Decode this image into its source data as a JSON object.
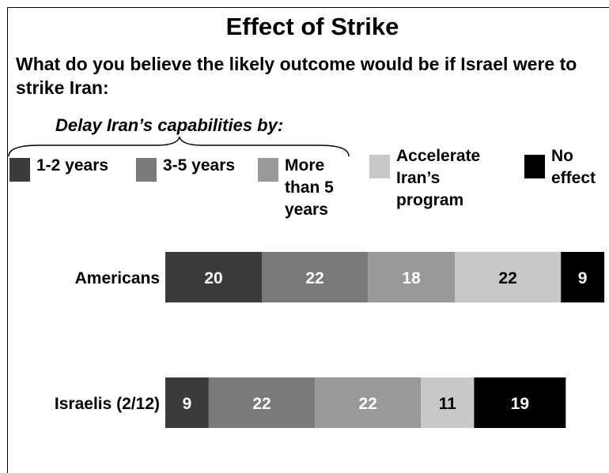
{
  "title": "Effect of Strike",
  "question": "What do you believe the likely outcome would be if Israel were to strike Iran:",
  "group_label": "Delay Iran’s capabilities by:",
  "chart_data": {
    "type": "bar",
    "orientation": "horizontal",
    "stacked": true,
    "title": "Effect of Strike",
    "xlabel": "",
    "ylabel": "",
    "categories": [
      "Americans",
      "Israelis (2/12)"
    ],
    "series": [
      {
        "name": "1-2 years",
        "color": "#3b3b3b",
        "values": [
          20,
          9
        ]
      },
      {
        "name": "3-5 years",
        "color": "#7a7a7a",
        "values": [
          22,
          22
        ]
      },
      {
        "name": "More than 5 years",
        "color": "#999999",
        "values": [
          18,
          22
        ]
      },
      {
        "name": "Accelerate Iran’s program",
        "color": "#c8c8c8",
        "values": [
          22,
          11
        ]
      },
      {
        "name": "No effect",
        "color": "#000000",
        "values": [
          9,
          19
        ]
      }
    ],
    "legend_labels": [
      "1-2 years",
      "3-5 years",
      "More\nthan 5\nyears",
      "Accelerate\nIran’s\nprogram",
      "No\neffect"
    ],
    "legend_position": "top",
    "grid": false,
    "data_labels": true
  }
}
